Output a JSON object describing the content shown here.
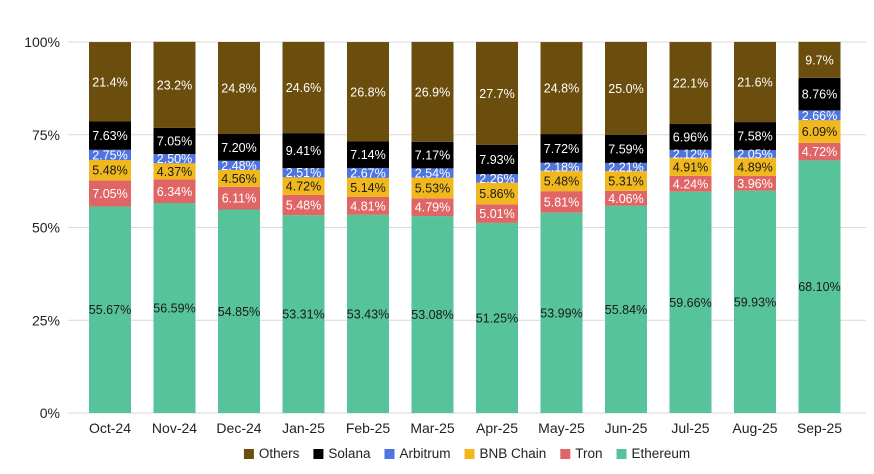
{
  "chart_data": {
    "type": "bar",
    "stacked": true,
    "percent_stacked": true,
    "categories": [
      "Oct-24",
      "Nov-24",
      "Dec-24",
      "Jan-25",
      "Feb-25",
      "Mar-25",
      "Apr-25",
      "May-25",
      "Jun-25",
      "Jul-25",
      "Aug-25",
      "Sep-25"
    ],
    "y_ticks": [
      "0%",
      "25%",
      "50%",
      "75%",
      "100%"
    ],
    "ylim": [
      0,
      100
    ],
    "grid": true,
    "legend_position": "bottom",
    "series": [
      {
        "name": "Ethereum",
        "color": "#56c39b",
        "label_color": "#1a1a1a",
        "values": [
          55.67,
          56.59,
          54.85,
          53.31,
          53.43,
          53.08,
          51.25,
          53.99,
          55.84,
          59.66,
          59.93,
          68.1
        ],
        "labels": [
          "55.67%",
          "56.59%",
          "54.85%",
          "53.31%",
          "53.43%",
          "53.08%",
          "51.25%",
          "53.99%",
          "55.84%",
          "59.66%",
          "59.93%",
          "68.10%"
        ]
      },
      {
        "name": "Tron",
        "color": "#e06666",
        "label_color": "#ffffff",
        "values": [
          7.05,
          6.34,
          6.11,
          5.48,
          4.81,
          4.79,
          5.01,
          5.81,
          4.06,
          4.24,
          3.96,
          4.72
        ],
        "labels": [
          "7.05%",
          "6.34%",
          "6.11%",
          "5.48%",
          "4.81%",
          "4.79%",
          "5.01%",
          "5.81%",
          "4.06%",
          "4.24%",
          "3.96%",
          "4.72%"
        ]
      },
      {
        "name": "BNB Chain",
        "color": "#f1b81d",
        "label_color": "#1a1a1a",
        "values": [
          5.48,
          4.37,
          4.56,
          4.72,
          5.14,
          5.53,
          5.86,
          5.48,
          5.31,
          4.91,
          4.89,
          6.09
        ],
        "labels": [
          "5.48%",
          "4.37%",
          "4.56%",
          "4.72%",
          "5.14%",
          "5.53%",
          "5.86%",
          "5.48%",
          "5.31%",
          "4.91%",
          "4.89%",
          "6.09%"
        ]
      },
      {
        "name": "Arbitrum",
        "color": "#4e74e0",
        "label_color": "#ffffff",
        "values": [
          2.75,
          2.5,
          2.48,
          2.51,
          2.67,
          2.54,
          2.26,
          2.18,
          2.21,
          2.12,
          2.05,
          2.66
        ],
        "labels": [
          "2.75%",
          "2.50%",
          "2.48%",
          "2.51%",
          "2.67%",
          "2.54%",
          "2.26%",
          "2.18%",
          "2.21%",
          "2.12%",
          "2.05%",
          "2.66%"
        ]
      },
      {
        "name": "Solana",
        "color": "#000000",
        "label_color": "#ffffff",
        "values": [
          7.63,
          7.05,
          7.2,
          9.41,
          7.14,
          7.17,
          7.93,
          7.72,
          7.59,
          6.96,
          7.58,
          8.76
        ],
        "labels": [
          "7.63%",
          "7.05%",
          "7.20%",
          "9.41%",
          "7.14%",
          "7.17%",
          "7.93%",
          "7.72%",
          "7.59%",
          "6.96%",
          "7.58%",
          "8.76%"
        ]
      },
      {
        "name": "Others",
        "color": "#6b4e0d",
        "label_color": "#ffffff",
        "values": [
          21.4,
          23.2,
          24.8,
          24.6,
          26.8,
          26.9,
          27.7,
          24.8,
          25.0,
          22.1,
          21.6,
          9.7
        ],
        "labels": [
          "21.4%",
          "23.2%",
          "24.8%",
          "24.6%",
          "26.8%",
          "26.9%",
          "27.7%",
          "24.8%",
          "25.0%",
          "22.1%",
          "21.6%",
          "9.7%"
        ]
      }
    ],
    "legend_order": [
      "Others",
      "Solana",
      "Arbitrum",
      "BNB Chain",
      "Tron",
      "Ethereum"
    ]
  }
}
